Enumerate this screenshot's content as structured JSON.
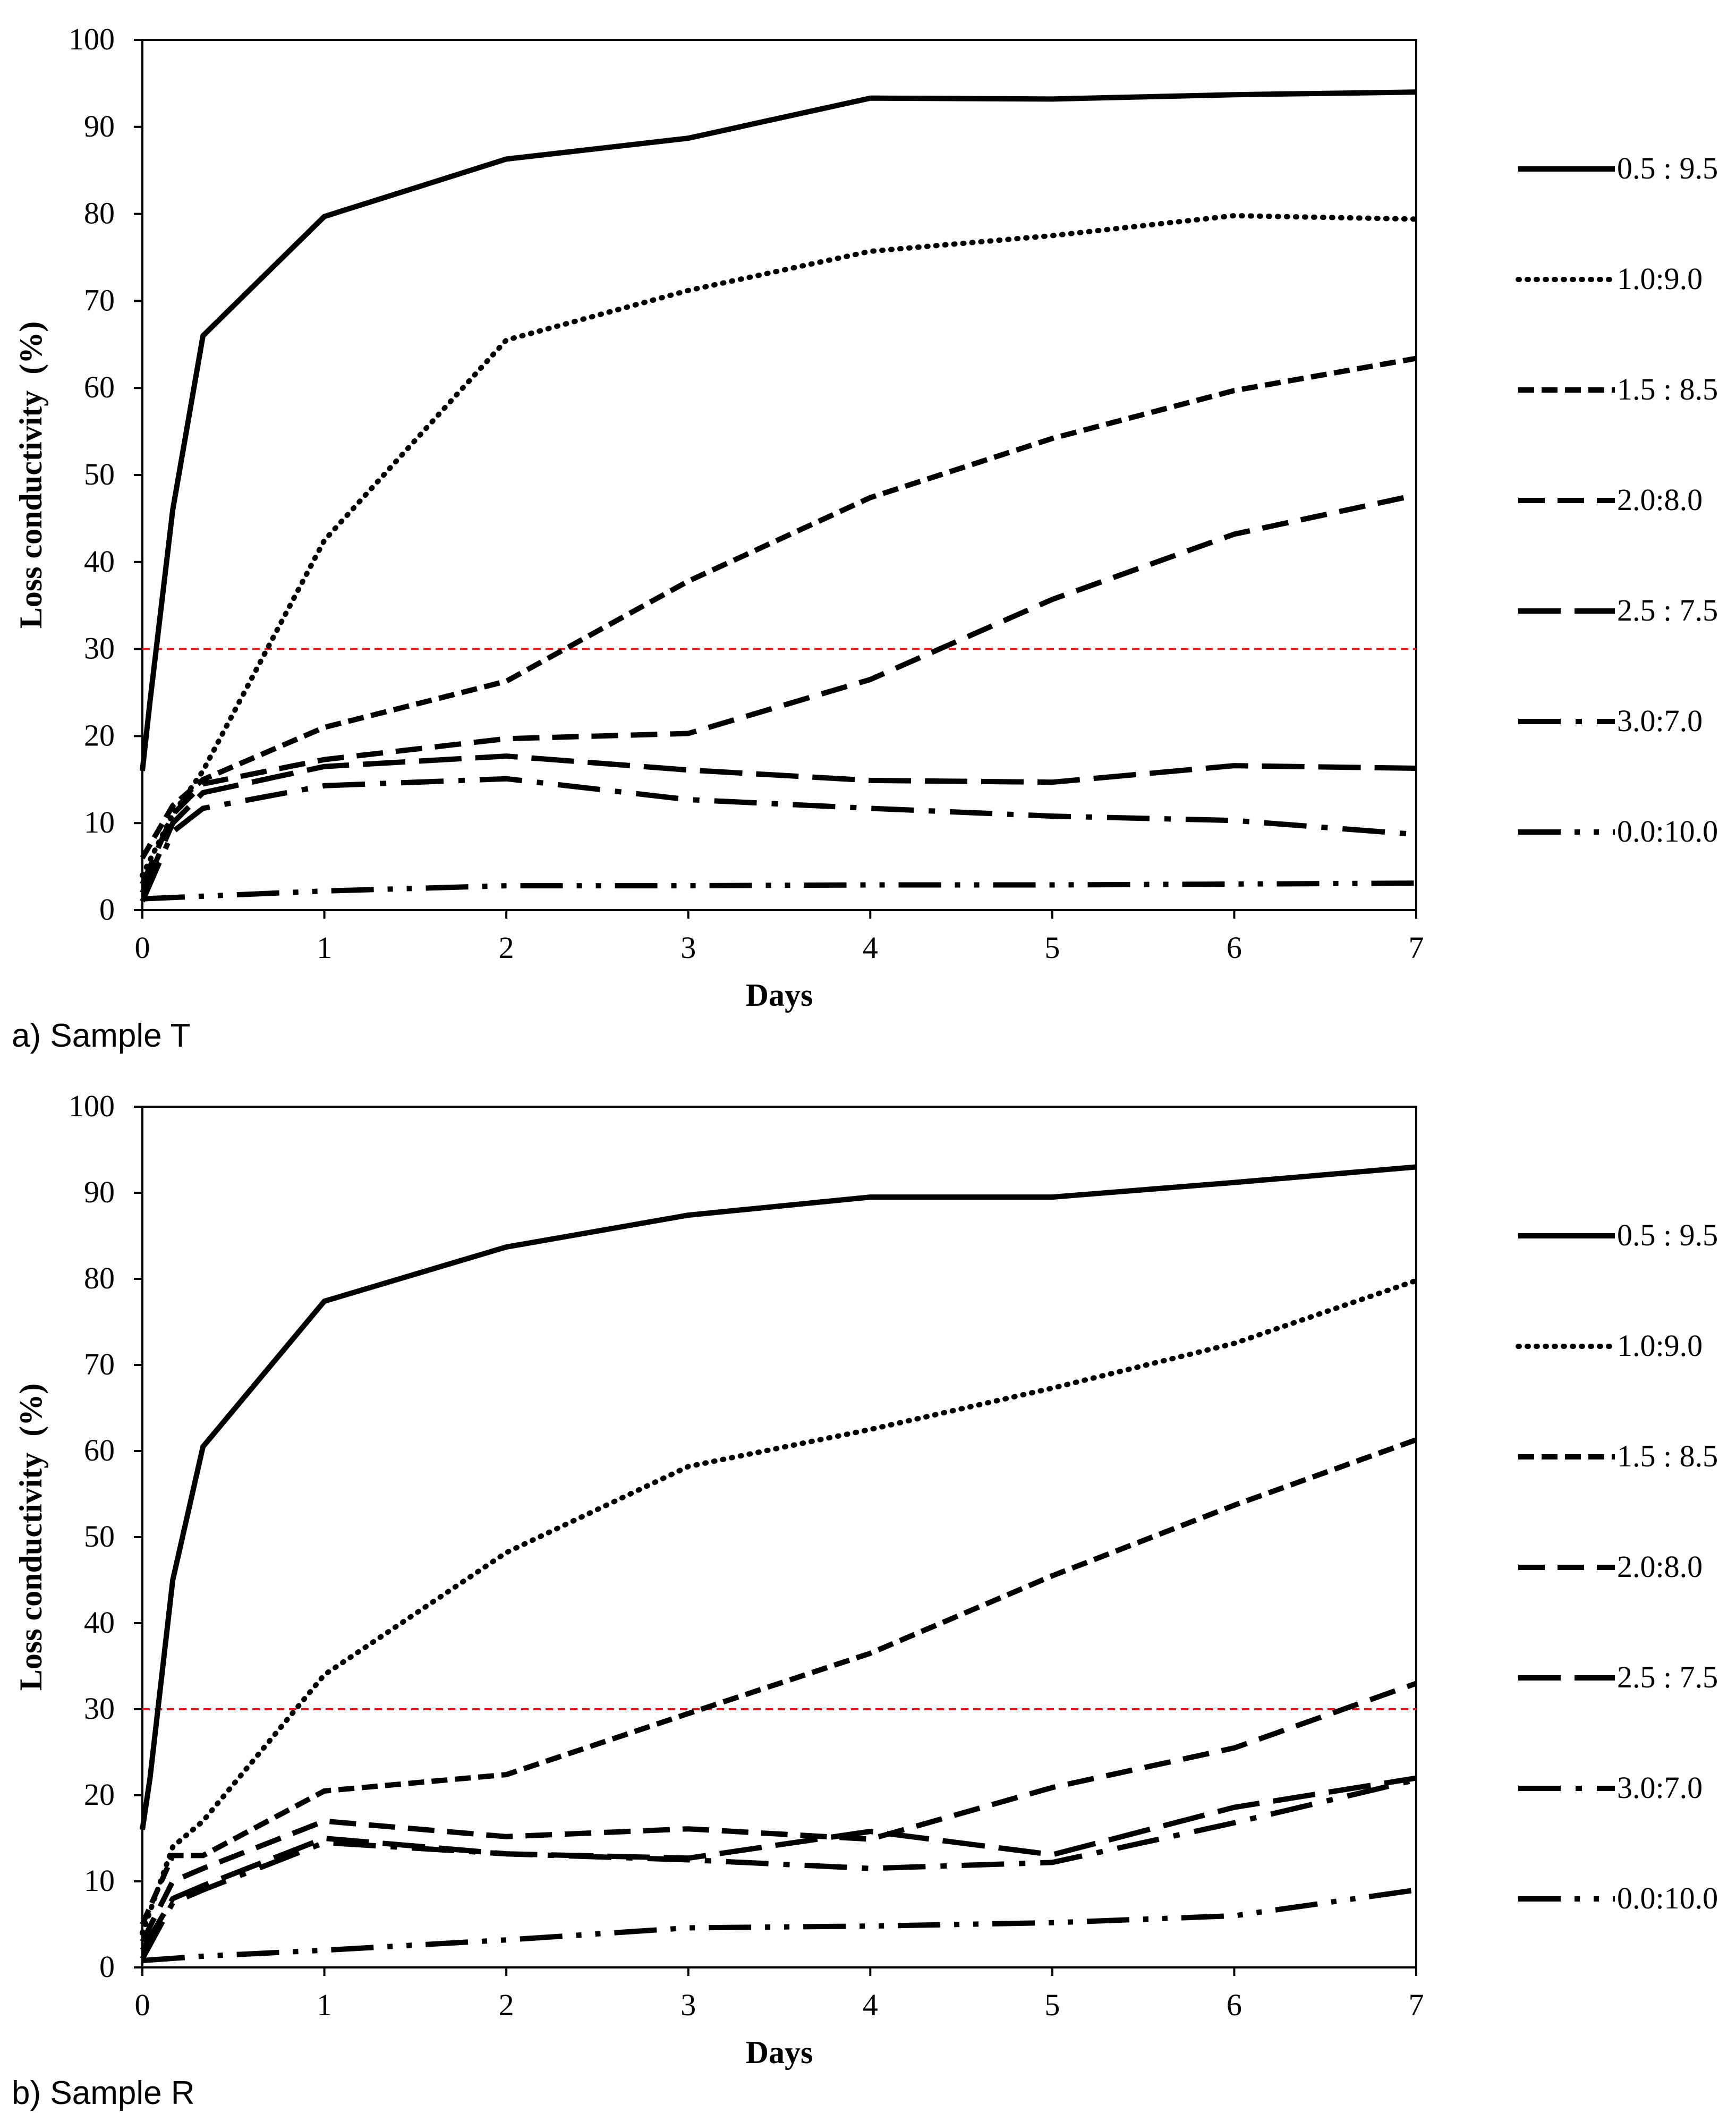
{
  "chart_data": [
    {
      "type": "line",
      "caption": "a) Sample T",
      "xlabel": "Days",
      "ylabel": "Loss conductivity  (%)",
      "xlim": [
        0,
        7
      ],
      "ylim": [
        0,
        100
      ],
      "xticks": [
        "0",
        "1",
        "2",
        "3",
        "4",
        "5",
        "6",
        "7"
      ],
      "yticks": [
        "0",
        "10",
        "20",
        "30",
        "40",
        "50",
        "60",
        "70",
        "80",
        "90",
        "100"
      ],
      "grid": false,
      "legend_position": "right",
      "reference_line": {
        "y": 30,
        "color": "#e41a1c"
      },
      "series": [
        {
          "name": "0.5 : 9.5",
          "style": "solid",
          "points": [
            [
              0,
              16
            ],
            [
              0.042,
              24
            ],
            [
              0.167,
              46
            ],
            [
              0.333,
              66
            ],
            [
              1,
              79.7
            ],
            [
              2,
              86.3
            ],
            [
              3,
              88.7
            ],
            [
              4,
              93.3
            ],
            [
              5,
              93.2
            ],
            [
              6,
              93.7
            ],
            [
              7,
              94
            ]
          ]
        },
        {
          "name": "1.0:9.0",
          "style": "dotted",
          "points": [
            [
              0,
              4
            ],
            [
              0.167,
              11
            ],
            [
              0.333,
              16
            ],
            [
              1,
              42.5
            ],
            [
              2,
              65.5
            ],
            [
              3,
              71.2
            ],
            [
              4,
              75.7
            ],
            [
              5,
              77.5
            ],
            [
              6,
              79.8
            ],
            [
              7,
              79.4
            ]
          ]
        },
        {
          "name": "1.5 : 8.5",
          "style": "short-dash",
          "points": [
            [
              0,
              6
            ],
            [
              0.167,
              12
            ],
            [
              0.333,
              15
            ],
            [
              1,
              21
            ],
            [
              2,
              26.3
            ],
            [
              3,
              37.8
            ],
            [
              4,
              47.4
            ],
            [
              5,
              54.2
            ],
            [
              6,
              59.7
            ],
            [
              7,
              63.4
            ]
          ]
        },
        {
          "name": "2.0:8.0",
          "style": "medium-dash",
          "points": [
            [
              0,
              3
            ],
            [
              0.167,
              11
            ],
            [
              0.333,
              14.5
            ],
            [
              1,
              17.3
            ],
            [
              2,
              19.7
            ],
            [
              3,
              20.3
            ],
            [
              4,
              26.5
            ],
            [
              5,
              35.7
            ],
            [
              6,
              43.2
            ],
            [
              7,
              47.7
            ]
          ]
        },
        {
          "name": "2.5 : 7.5",
          "style": "long-dash",
          "points": [
            [
              0,
              2
            ],
            [
              0.167,
              10
            ],
            [
              0.333,
              13.5
            ],
            [
              1,
              16.5
            ],
            [
              2,
              17.7
            ],
            [
              3,
              16.1
            ],
            [
              4,
              14.9
            ],
            [
              5,
              14.7
            ],
            [
              6,
              16.6
            ],
            [
              7,
              16.3
            ]
          ]
        },
        {
          "name": "3.0:7.0",
          "style": "dash-dot",
          "points": [
            [
              0,
              1
            ],
            [
              0.167,
              9
            ],
            [
              0.333,
              11.7
            ],
            [
              1,
              14.3
            ],
            [
              2,
              15.1
            ],
            [
              3,
              12.7
            ],
            [
              4,
              11.7
            ],
            [
              5,
              10.8
            ],
            [
              6,
              10.3
            ],
            [
              7,
              8.7
            ]
          ]
        },
        {
          "name": "0.0:10.0",
          "style": "dash-dot-dot",
          "points": [
            [
              0,
              1.3
            ],
            [
              0.333,
              1.6
            ],
            [
              1,
              2.2
            ],
            [
              2,
              2.8
            ],
            [
              3,
              2.8
            ],
            [
              4,
              2.9
            ],
            [
              5,
              2.9
            ],
            [
              6,
              3
            ],
            [
              7,
              3.1
            ]
          ]
        }
      ]
    },
    {
      "type": "line",
      "caption": "b) Sample R",
      "xlabel": "Days",
      "ylabel": "Loss conductivity  (%)",
      "xlim": [
        0,
        7
      ],
      "ylim": [
        0,
        100
      ],
      "xticks": [
        "0",
        "1",
        "2",
        "3",
        "4",
        "5",
        "6",
        "7"
      ],
      "yticks": [
        "0",
        "10",
        "20",
        "30",
        "40",
        "50",
        "60",
        "70",
        "80",
        "90",
        "100"
      ],
      "grid": false,
      "legend_position": "right",
      "reference_line": {
        "y": 30,
        "color": "#e41a1c"
      },
      "series": [
        {
          "name": "0.5 : 9.5",
          "style": "solid",
          "points": [
            [
              0,
              16
            ],
            [
              0.042,
              22
            ],
            [
              0.167,
              45
            ],
            [
              0.333,
              60.5
            ],
            [
              1,
              77.4
            ],
            [
              2,
              83.7
            ],
            [
              3,
              87.4
            ],
            [
              4,
              89.5
            ],
            [
              5,
              89.5
            ],
            [
              6,
              91.2
            ],
            [
              7,
              93
            ]
          ]
        },
        {
          "name": "1.0:9.0",
          "style": "dotted",
          "points": [
            [
              0,
              4
            ],
            [
              0.167,
              14
            ],
            [
              0.333,
              17
            ],
            [
              1,
              34
            ],
            [
              2,
              48.2
            ],
            [
              3,
              58.2
            ],
            [
              4,
              62.5
            ],
            [
              5,
              67.3
            ],
            [
              6,
              72.5
            ],
            [
              7,
              79.8
            ]
          ]
        },
        {
          "name": "1.5 : 8.5",
          "style": "short-dash",
          "points": [
            [
              0,
              5
            ],
            [
              0.167,
              13
            ],
            [
              0.333,
              13
            ],
            [
              1,
              20.5
            ],
            [
              2,
              22.4
            ],
            [
              3,
              29.5
            ],
            [
              4,
              36.5
            ],
            [
              5,
              45.5
            ],
            [
              6,
              53.7
            ],
            [
              7,
              61.3
            ]
          ]
        },
        {
          "name": "2.0:8.0",
          "style": "medium-dash",
          "points": [
            [
              0,
              3
            ],
            [
              0.167,
              10
            ],
            [
              0.333,
              11.5
            ],
            [
              1,
              17
            ],
            [
              2,
              15.2
            ],
            [
              3,
              16.1
            ],
            [
              4,
              14.9
            ],
            [
              5,
              20.9
            ],
            [
              6,
              25.5
            ],
            [
              7,
              33
            ]
          ]
        },
        {
          "name": "2.5 : 7.5",
          "style": "long-dash",
          "points": [
            [
              0,
              2
            ],
            [
              0.167,
              8
            ],
            [
              0.333,
              9.5
            ],
            [
              1,
              15
            ],
            [
              2,
              13.2
            ],
            [
              3,
              12.7
            ],
            [
              4,
              15.8
            ],
            [
              5,
              13.1
            ],
            [
              6,
              18.6
            ],
            [
              7,
              22
            ]
          ]
        },
        {
          "name": "3.0:7.0",
          "style": "dash-dot",
          "points": [
            [
              0,
              1
            ],
            [
              0.167,
              7.5
            ],
            [
              0.333,
              9
            ],
            [
              1,
              14.5
            ],
            [
              2,
              13.2
            ],
            [
              3,
              12.5
            ],
            [
              4,
              11.5
            ],
            [
              5,
              12.2
            ],
            [
              6,
              16.8
            ],
            [
              7,
              21.8
            ]
          ]
        },
        {
          "name": "0.0:10.0",
          "style": "dash-dot-dot",
          "points": [
            [
              0,
              0.8
            ],
            [
              0.333,
              1.3
            ],
            [
              1,
              2
            ],
            [
              2,
              3.2
            ],
            [
              3,
              4.6
            ],
            [
              4,
              4.8
            ],
            [
              5,
              5.2
            ],
            [
              6,
              6
            ],
            [
              7,
              9
            ]
          ]
        }
      ]
    }
  ]
}
